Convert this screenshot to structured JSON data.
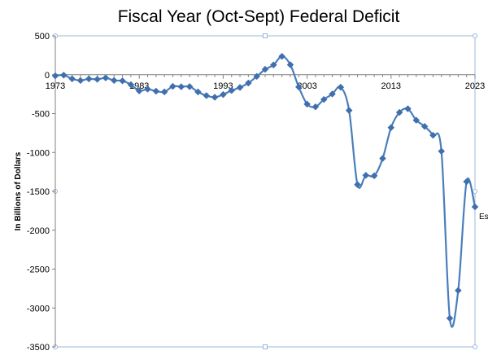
{
  "chart_data": {
    "type": "line",
    "title": "Fiscal Year (Oct-Sept) Federal Deficit",
    "xlabel": "",
    "ylabel": "In Billions of Dollars",
    "xlim": [
      1973,
      2023
    ],
    "ylim": [
      -3500,
      500
    ],
    "yticks": [
      500,
      0,
      -500,
      -1000,
      -1500,
      -2000,
      -2500,
      -3000,
      -3500
    ],
    "xticks": [
      1973,
      1983,
      1993,
      2003,
      2013,
      2023
    ],
    "grid": false,
    "legend": "none",
    "smooth": true,
    "colors": {
      "line": "#4a7ebb",
      "marker": "#3f6fae",
      "frame": "#9bb7d9"
    },
    "series": [
      {
        "x": [
          1973,
          1974,
          1975,
          1976,
          1977,
          1978,
          1979,
          1980,
          1981,
          1982,
          1983,
          1984,
          1985,
          1986,
          1987,
          1988,
          1989,
          1990,
          1991,
          1992,
          1993,
          1994,
          1995,
          1996,
          1997,
          1998,
          1999,
          2000,
          2001,
          2002,
          2003,
          2004,
          2005,
          2006,
          2007,
          2008,
          2009,
          2010,
          2011,
          2012,
          2013,
          2014,
          2015,
          2016,
          2017,
          2018,
          2019,
          2020,
          2021,
          2022,
          2023
        ],
        "values": [
          -15,
          -6,
          -53,
          -74,
          -54,
          -59,
          -41,
          -74,
          -79,
          -128,
          -208,
          -185,
          -212,
          -221,
          -150,
          -155,
          -153,
          -221,
          -269,
          -290,
          -255,
          -203,
          -164,
          -107,
          -22,
          69,
          126,
          236,
          128,
          -158,
          -378,
          -413,
          -318,
          -248,
          -161,
          -459,
          -1413,
          -1294,
          -1300,
          -1077,
          -680,
          -485,
          -438,
          -585,
          -665,
          -779,
          -984,
          -3132,
          -2775,
          -1375,
          -1700
        ]
      }
    ],
    "annotations": [
      {
        "text": "Est",
        "x": 2023,
        "y": -1700
      }
    ]
  }
}
